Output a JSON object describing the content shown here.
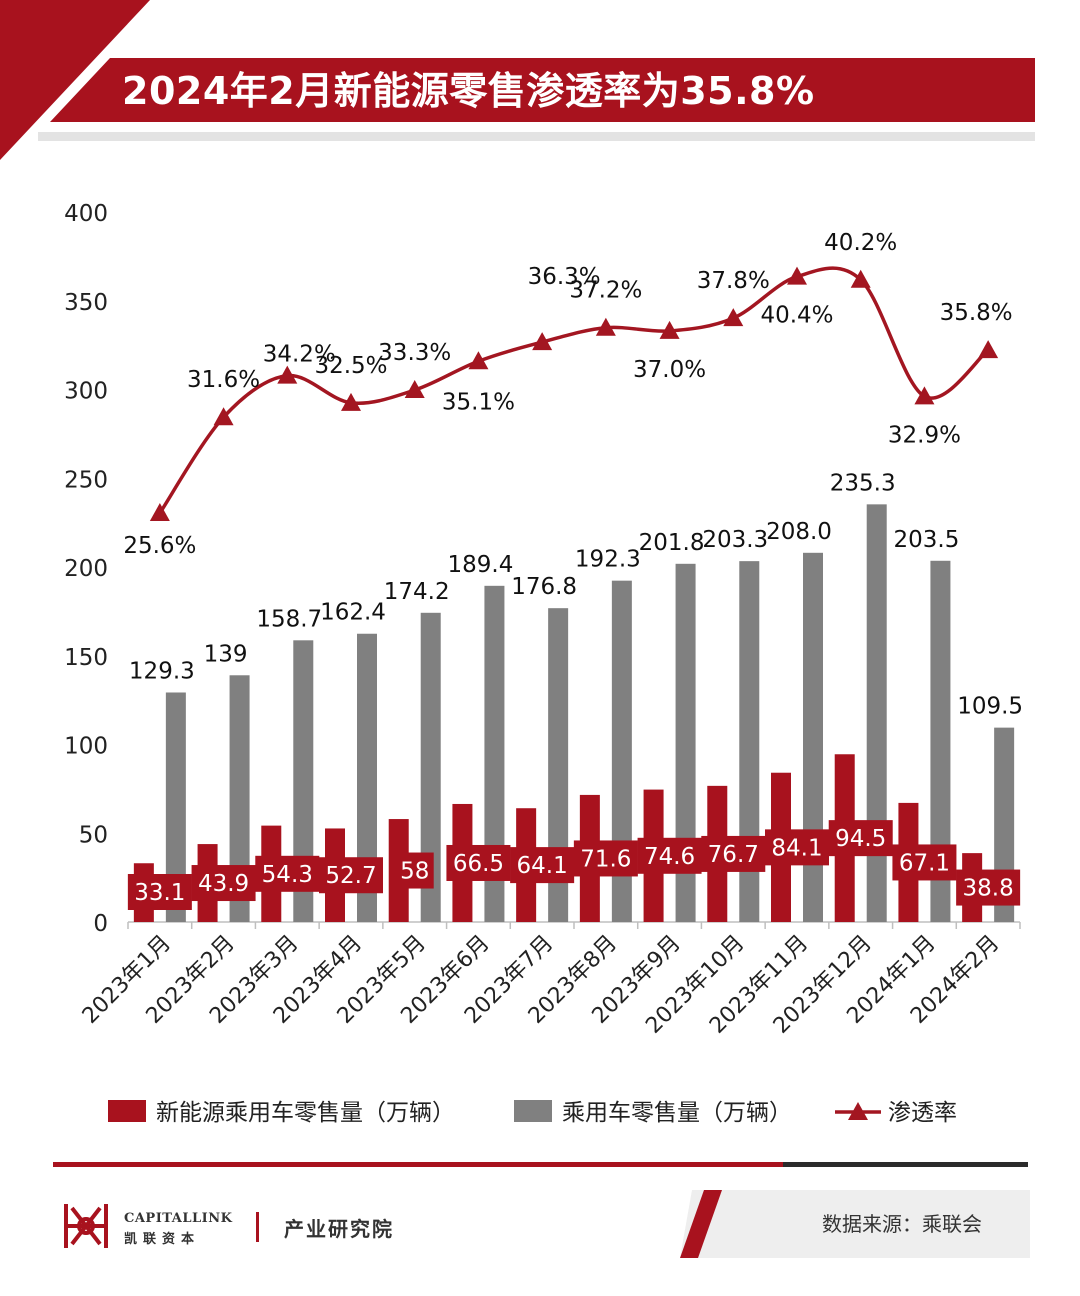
{
  "header": {
    "title": "2024年2月新能源零售渗透率为35.8%"
  },
  "colors": {
    "red": "#a8121e",
    "gray": "#808080",
    "line": "#a31621",
    "dark": "#2b2b2b"
  },
  "chart_data": {
    "type": "bar",
    "categories": [
      "2023年1月",
      "2023年2月",
      "2023年3月",
      "2023年4月",
      "2023年5月",
      "2023年6月",
      "2023年7月",
      "2023年8月",
      "2023年9月",
      "2023年10月",
      "2023年11月",
      "2023年12月",
      "2024年1月",
      "2024年2月"
    ],
    "series": [
      {
        "name": "新能源乘用车零售量（万辆）",
        "type": "bar",
        "values": [
          33.1,
          43.9,
          54.3,
          52.7,
          58,
          66.5,
          64.1,
          71.6,
          74.6,
          76.7,
          84.1,
          94.5,
          67.1,
          38.8
        ],
        "labels": [
          "33.1",
          "43.9",
          "54.3",
          "52.7",
          "58",
          "66.5",
          "64.1",
          "71.6",
          "74.6",
          "76.7",
          "84.1",
          "94.5",
          "67.1",
          "38.8"
        ]
      },
      {
        "name": "乘用车零售量（万辆）",
        "type": "bar",
        "values": [
          129.3,
          139,
          158.7,
          162.4,
          174.2,
          189.4,
          176.8,
          192.3,
          201.8,
          203.3,
          208.0,
          235.3,
          203.5,
          109.5
        ],
        "labels": [
          "129.3",
          "139",
          "158.7",
          "162.4",
          "174.2",
          "189.4",
          "176.8",
          "192.3",
          "201.8",
          "203.3",
          "208.0",
          "235.3",
          "203.5",
          "109.5"
        ]
      },
      {
        "name": "渗透率",
        "type": "line",
        "values": [
          25.6,
          31.6,
          34.2,
          32.5,
          33.3,
          35.1,
          36.3,
          37.2,
          37.0,
          37.8,
          40.4,
          40.2,
          32.9,
          35.8
        ],
        "labels": [
          "25.6%",
          "31.6%",
          "34.2%",
          "32.5%",
          "33.3%",
          "35.1%",
          "36.3%",
          "37.2%",
          "37.0%",
          "37.8%",
          "40.4%",
          "40.2%",
          "32.9%",
          "35.8%"
        ]
      }
    ],
    "y_ticks": [
      "0",
      "50",
      "100",
      "150",
      "200",
      "250",
      "300",
      "350",
      "400"
    ],
    "ylim": [
      0,
      400
    ],
    "rate_to_axis": {
      "scale": 9,
      "offset": 0
    },
    "legend": "bottom"
  },
  "footer": {
    "logo_en": "CAPITALLINK",
    "logo_cn": "凯联资本",
    "department": "产业研究院",
    "source": "数据来源：乘联会"
  }
}
